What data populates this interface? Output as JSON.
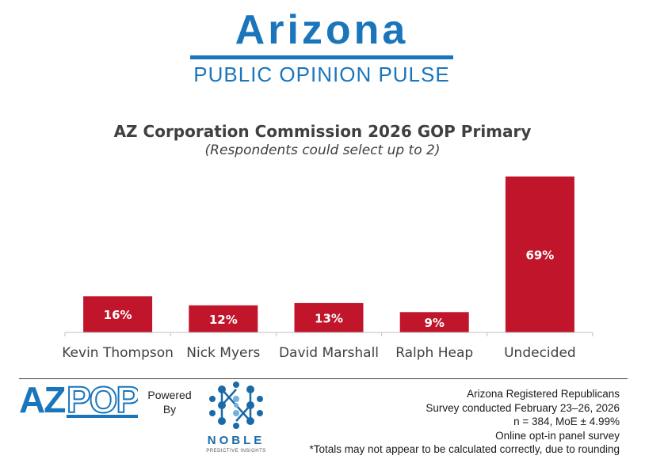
{
  "brand": {
    "title": "Arizona",
    "subtitle": "PUBLIC OPINION PULSE",
    "color": "#1b75bb"
  },
  "chart_data": {
    "type": "bar",
    "title": "AZ Corporation Commission 2026 GOP Primary",
    "subtitle": "(Respondents could select up to 2)",
    "categories": [
      "Kevin Thompson",
      "Nick Myers",
      "David Marshall",
      "Ralph Heap",
      "Undecided"
    ],
    "values": [
      16,
      12,
      13,
      9,
      69
    ],
    "value_labels": [
      "16%",
      "12%",
      "13%",
      "9%",
      "69%"
    ],
    "bar_color": "#c0152a",
    "ylim": [
      0,
      69
    ],
    "grid": false,
    "legend": "none"
  },
  "footer": {
    "azpop_logo_text": "AZPOP",
    "powered_by": [
      "Powered",
      "By"
    ],
    "noble_name": "NOBLE",
    "noble_tagline": "PREDICTIVE INSIGHTS",
    "notes": [
      "Arizona Registered Republicans",
      "Survey conducted February 23–26, 2026",
      "n = 384, MoE ± 4.99%",
      "Online opt-in panel survey",
      "*Totals may not appear to be calculated correctly, due to rounding"
    ]
  }
}
